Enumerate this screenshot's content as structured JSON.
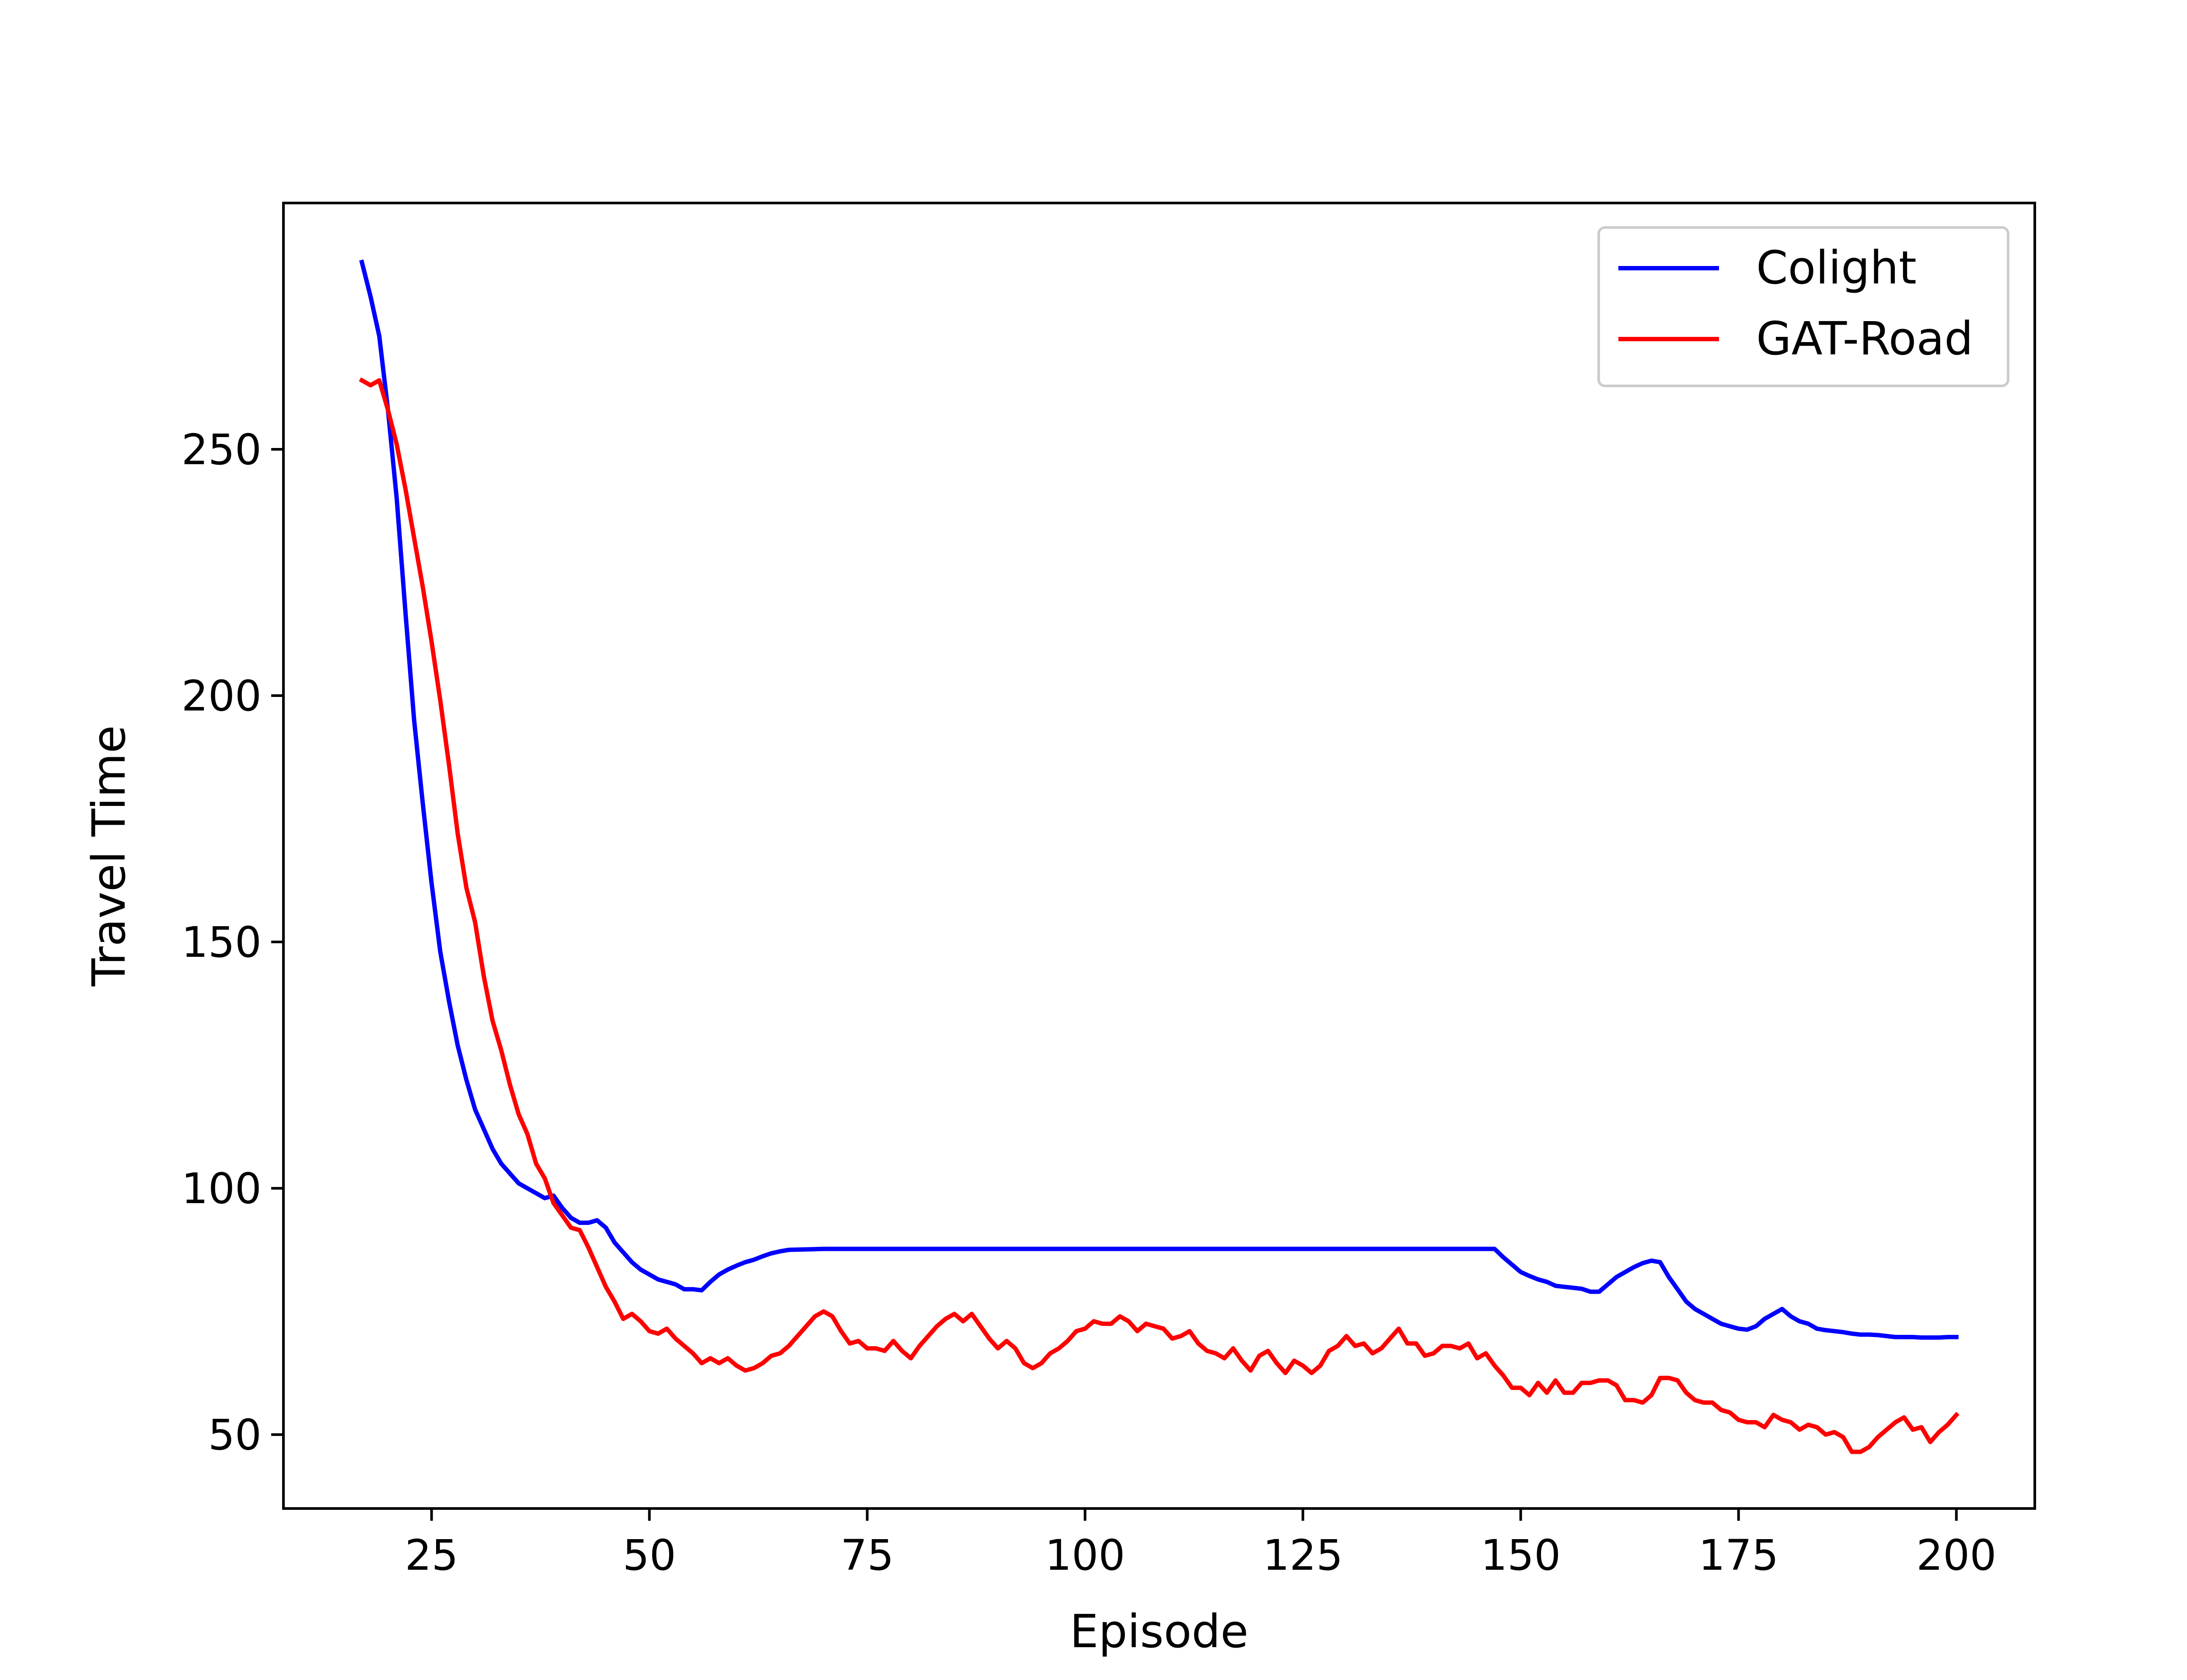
{
  "chart_data": {
    "type": "line",
    "title": "",
    "xlabel": "Episode",
    "ylabel": "Travel Time",
    "xlim": [
      8,
      209
    ],
    "ylim": [
      35,
      300
    ],
    "xticks": [
      25,
      50,
      75,
      100,
      125,
      150,
      175,
      200
    ],
    "yticks": [
      50,
      100,
      150,
      200,
      250
    ],
    "grid": false,
    "legend_position": "top-right",
    "series": [
      {
        "name": "Colight",
        "color": "#0000ff",
        "x": [
          17,
          18,
          19,
          20,
          21,
          22,
          23,
          24,
          25,
          26,
          27,
          28,
          29,
          30,
          31,
          32,
          33,
          34,
          35,
          36,
          37,
          38,
          39,
          40,
          41,
          42,
          43,
          44,
          45,
          46,
          47,
          48,
          49,
          50,
          51,
          52,
          53,
          54,
          55,
          56,
          57,
          58,
          59,
          60,
          61,
          62,
          63,
          64,
          65,
          66,
          68,
          70,
          72,
          75,
          80,
          90,
          100,
          110,
          120,
          130,
          140,
          147,
          148,
          149,
          150,
          151,
          152,
          153,
          154,
          155,
          156,
          157,
          158,
          159,
          160,
          161,
          162,
          163,
          164,
          165,
          166,
          167,
          168,
          169,
          170,
          171,
          172,
          173,
          174,
          175,
          176,
          177,
          178,
          179,
          180,
          181,
          182,
          183,
          184,
          185,
          186,
          187,
          188,
          189,
          190,
          191,
          192,
          193,
          194,
          195,
          196,
          197,
          198,
          199,
          200
        ],
        "values": [
          288,
          281,
          273,
          258,
          240,
          217,
          195,
          178,
          162,
          148,
          138,
          129,
          122,
          116,
          112,
          108,
          105,
          103,
          101,
          100,
          99,
          98,
          98.5,
          96,
          94,
          93,
          93,
          93.5,
          92,
          89,
          87,
          85,
          83.5,
          82.5,
          81.5,
          81,
          80.5,
          79.5,
          79.5,
          79.3,
          81,
          82.5,
          83.5,
          84.3,
          85,
          85.5,
          86.2,
          86.8,
          87.2,
          87.5,
          87.6,
          87.7,
          87.7,
          87.7,
          87.7,
          87.7,
          87.7,
          87.7,
          87.7,
          87.7,
          87.7,
          87.7,
          86,
          84.5,
          83,
          82.2,
          81.5,
          81,
          80.2,
          80,
          79.8,
          79.6,
          79,
          79,
          80.5,
          82,
          83,
          84,
          84.8,
          85.3,
          85,
          82,
          79.5,
          77,
          75.5,
          74.5,
          73.5,
          72.5,
          72,
          71.5,
          71.3,
          72,
          73.5,
          74.5,
          75.5,
          74,
          73,
          72.5,
          71.5,
          71.2,
          71,
          70.8,
          70.5,
          70.3,
          70.3,
          70.2,
          70,
          69.8,
          69.8,
          69.8,
          69.7,
          69.7,
          69.7,
          69.8,
          69.8
        ]
      },
      {
        "name": "GAT-Road",
        "color": "#ff0000",
        "x": [
          17,
          18,
          19,
          20,
          21,
          22,
          23,
          24,
          25,
          26,
          27,
          28,
          29,
          30,
          31,
          32,
          33,
          34,
          35,
          36,
          37,
          38,
          39,
          40,
          41,
          42,
          43,
          44,
          45,
          46,
          47,
          48,
          49,
          50,
          51,
          52,
          53,
          54,
          55,
          56,
          57,
          58,
          59,
          60,
          61,
          62,
          63,
          64,
          65,
          66,
          67,
          68,
          69,
          70,
          71,
          72,
          73,
          74,
          75,
          76,
          77,
          78,
          79,
          80,
          81,
          82,
          83,
          84,
          85,
          86,
          87,
          88,
          89,
          90,
          91,
          92,
          93,
          94,
          95,
          96,
          97,
          98,
          99,
          100,
          101,
          102,
          103,
          104,
          105,
          106,
          107,
          108,
          109,
          110,
          111,
          112,
          113,
          114,
          115,
          116,
          117,
          118,
          119,
          120,
          121,
          122,
          123,
          124,
          125,
          126,
          127,
          128,
          129,
          130,
          131,
          132,
          133,
          134,
          135,
          136,
          137,
          138,
          139,
          140,
          141,
          142,
          143,
          144,
          145,
          146,
          147,
          148,
          149,
          150,
          151,
          152,
          153,
          154,
          155,
          156,
          157,
          158,
          159,
          160,
          161,
          162,
          163,
          164,
          165,
          166,
          167,
          168,
          169,
          170,
          171,
          172,
          173,
          174,
          175,
          176,
          177,
          178,
          179,
          180,
          181,
          182,
          183,
          184,
          185,
          186,
          187,
          188,
          189,
          190,
          191,
          192,
          193,
          194,
          195,
          196,
          197,
          198,
          199,
          200
        ],
        "values": [
          264,
          263,
          264,
          258,
          251,
          242,
          232,
          222,
          211,
          199,
          186,
          172,
          161,
          154,
          143,
          134,
          128,
          121,
          115,
          111,
          105,
          102,
          97,
          94.5,
          92,
          91.5,
          88,
          84,
          80,
          77,
          73.5,
          74.5,
          73,
          71,
          70.5,
          71.5,
          69.5,
          68,
          66.5,
          64.5,
          65.5,
          64.5,
          65.5,
          64,
          63,
          63.5,
          64.5,
          66,
          66.5,
          68,
          70,
          72,
          74,
          75,
          74,
          71,
          68.5,
          69,
          67.5,
          67.5,
          67,
          69,
          67,
          65.5,
          68,
          70,
          72,
          73.5,
          74.5,
          73,
          74.5,
          72,
          69.5,
          67.5,
          69,
          67.5,
          64.5,
          63.5,
          64.5,
          66.5,
          67.5,
          69,
          71,
          71.5,
          73,
          72.5,
          72.5,
          74,
          73,
          71,
          72.5,
          72,
          71.5,
          69.5,
          70,
          71,
          68.5,
          67,
          66.5,
          65.5,
          67.5,
          65,
          63,
          66,
          67,
          64.5,
          62.5,
          65,
          64,
          62.5,
          64,
          67,
          68,
          70,
          68,
          68.5,
          66.5,
          67.5,
          69.5,
          71.5,
          68.5,
          68.5,
          66,
          66.5,
          68,
          68,
          67.5,
          68.5,
          65.5,
          66.5,
          64,
          62,
          59.5,
          59.5,
          58,
          60.5,
          58.5,
          61,
          58.5,
          58.5,
          60.5,
          60.5,
          61,
          61,
          60,
          57,
          57,
          56.5,
          58,
          61.5,
          61.5,
          61,
          58.5,
          57,
          56.5,
          56.5,
          55,
          54.5,
          53,
          52.5,
          52.5,
          51.5,
          54,
          53,
          52.5,
          51,
          52,
          51.5,
          50,
          50.5,
          49.5,
          46.5,
          46.5,
          47.5,
          49.5,
          51,
          52.5,
          53.5,
          51,
          51.5,
          48.5,
          50.5,
          52,
          54
        ]
      }
    ]
  }
}
